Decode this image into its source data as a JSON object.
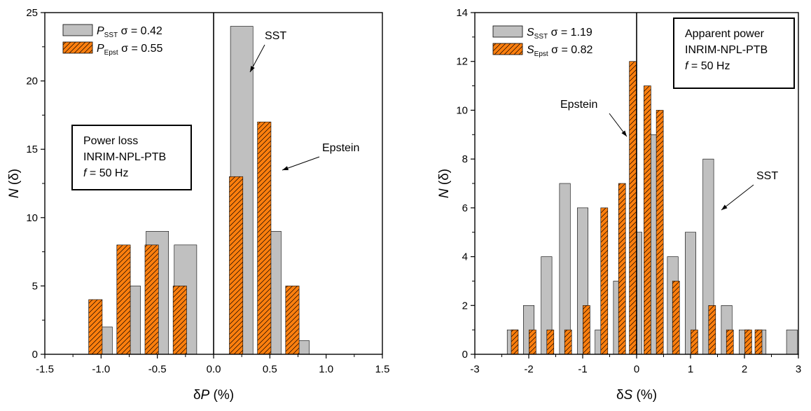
{
  "chart_data": [
    {
      "type": "bar",
      "panel": "left",
      "xlabel": "δP (%)",
      "xlabel_symbol": "δ",
      "xlabel_var": "P",
      "xlabel_unit": " (%)",
      "ylabel": "N (δ)",
      "ylabel_var": "N",
      "ylabel_rest": " (δ)",
      "xlim": [
        -1.5,
        1.5
      ],
      "ylim": [
        0,
        25
      ],
      "xticks": [
        -1.5,
        -1.0,
        -0.5,
        0.0,
        0.5,
        1.0,
        1.5
      ],
      "xtick_labels": [
        "-1.5",
        "-1.0",
        "-0.5",
        "0.0",
        "0.5",
        "1.0",
        "1.5"
      ],
      "yticks": [
        0,
        5,
        10,
        15,
        20,
        25
      ],
      "ytick_labels": [
        "0",
        "5",
        "10",
        "15",
        "20",
        "25"
      ],
      "vertical_line_at": 0,
      "legend_placement": "top-left",
      "series": [
        {
          "name": "P_SST σ = 0.42",
          "var": "P",
          "sub": "SST",
          "sigma": "σ = 0.42",
          "color": "#c0c0c0",
          "hatch": false,
          "bar_width": 0.2,
          "x": [
            -1.0,
            -0.75,
            -0.5,
            -0.25,
            0.0,
            0.25,
            0.5,
            0.75
          ],
          "values": [
            2,
            5,
            9,
            8,
            0,
            24,
            9,
            1
          ]
        },
        {
          "name": "P_Epst σ = 0.55",
          "var": "P",
          "sub": "Epst",
          "sigma": "σ = 0.55",
          "color": "#ff7f0e",
          "hatch": true,
          "bar_width": 0.12,
          "x": [
            -1.05,
            -0.8,
            -0.55,
            -0.3,
            -0.05,
            0.2,
            0.45,
            0.7
          ],
          "values": [
            4,
            8,
            8,
            5,
            0,
            13,
            17,
            5
          ]
        }
      ],
      "annotations": [
        {
          "text": "SST",
          "x": 0.38,
          "y": 21.9
        },
        {
          "text": "Epstein",
          "x": 0.87,
          "y": 15.0
        }
      ],
      "infobox": {
        "line1": "Power loss",
        "line2": "INRIM-NPL-PTB",
        "line3_var": "f",
        "line3_rest": " = 50 Hz"
      }
    },
    {
      "type": "bar",
      "panel": "right",
      "xlabel": "δS (%)",
      "xlabel_symbol": "δ",
      "xlabel_var": "S",
      "xlabel_unit": " (%)",
      "ylabel": "N (δ)",
      "ylabel_var": "N",
      "ylabel_rest": " (δ)",
      "xlim": [
        -3,
        3
      ],
      "ylim": [
        0,
        14
      ],
      "xticks": [
        -3,
        -2,
        -1,
        0,
        1,
        2,
        3
      ],
      "xtick_labels": [
        "-3",
        "-2",
        "-1",
        "0",
        "1",
        "2",
        "3"
      ],
      "yticks": [
        0,
        2,
        4,
        6,
        8,
        10,
        12,
        14
      ],
      "ytick_labels": [
        "0",
        "2",
        "4",
        "6",
        "8",
        "10",
        "12",
        "14"
      ],
      "vertical_line_at": 0,
      "legend_placement": "top-left",
      "series": [
        {
          "name": "S_SST σ = 1.19",
          "var": "S",
          "sub": "SST",
          "sigma": "σ = 1.19",
          "color": "#c0c0c0",
          "hatch": false,
          "bar_width": 0.2,
          "x": [
            -2.3,
            -2.0,
            -1.67,
            -1.33,
            -1.0,
            -0.67,
            -0.33,
            0.0,
            0.33,
            0.67,
            1.0,
            1.33,
            1.67,
            2.0,
            2.3,
            2.88
          ],
          "values": [
            1,
            2,
            4,
            7,
            6,
            1,
            3,
            5,
            9,
            4,
            5,
            8,
            2,
            1,
            1,
            1
          ]
        },
        {
          "name": "S_Epst σ = 0.82",
          "var": "S",
          "sub": "Epst",
          "sigma": "σ = 0.82",
          "color": "#ff7f0e",
          "hatch": true,
          "bar_width": 0.13,
          "x": [
            -2.26,
            -1.93,
            -1.6,
            -1.27,
            -0.93,
            -0.6,
            -0.27,
            -0.07,
            0.2,
            0.43,
            0.73,
            1.07,
            1.4,
            1.73,
            2.07,
            2.26
          ],
          "values": [
            1,
            1,
            1,
            1,
            2,
            6,
            7,
            12,
            11,
            10,
            3,
            1,
            2,
            1,
            1,
            1
          ]
        }
      ],
      "annotations": [
        {
          "text": "Epstein",
          "x": -0.8,
          "y": 10.5
        },
        {
          "text": "SST",
          "x": 1.92,
          "y": 8.1
        }
      ],
      "infobox": {
        "line1": "Apparent power",
        "line2": "INRIM-NPL-PTB",
        "line3_var": "f",
        "line3_rest": " = 50 Hz"
      }
    }
  ]
}
